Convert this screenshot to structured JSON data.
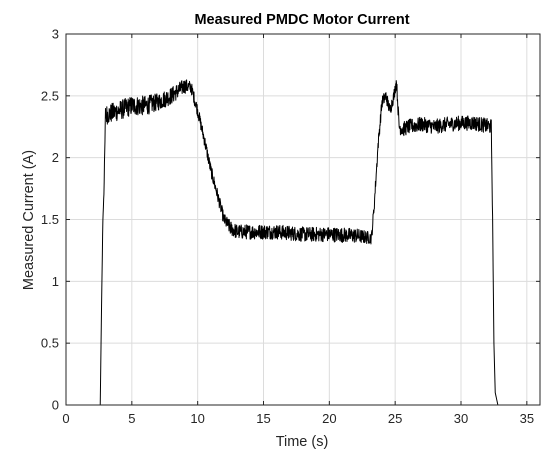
{
  "chart_data": {
    "type": "line",
    "title": "Measured PMDC Motor Current",
    "xlabel": "Time (s)",
    "ylabel": "Measured Current (A)",
    "xlim": [
      0,
      36
    ],
    "ylim": [
      0,
      3
    ],
    "xticks": [
      0,
      5,
      10,
      15,
      20,
      25,
      30,
      35
    ],
    "yticks": [
      0,
      0.5,
      1,
      1.5,
      2,
      2.5,
      3
    ],
    "xtick_labels": [
      "0",
      "5",
      "10",
      "15",
      "20",
      "25",
      "30",
      "35"
    ],
    "ytick_labels": [
      "0",
      "0.5",
      "1",
      "1.5",
      "2",
      "2.5",
      "3"
    ],
    "grid": true,
    "line_color": "#000000",
    "series": [
      {
        "x": [
          0,
          2.6,
          2.7,
          2.8,
          2.9,
          3.0,
          3.2,
          4.0,
          5.0,
          6.0,
          7.0,
          8.0,
          9.0,
          9.5,
          10.0,
          10.5,
          11.0,
          11.5,
          12.0,
          12.5,
          13.0,
          14.0,
          16.0,
          18.0,
          20.0,
          22.0,
          23.2,
          23.4,
          23.7,
          24.0,
          24.3,
          24.6,
          24.9,
          25.1,
          25.3,
          25.6,
          26.0,
          27.0,
          28.0,
          29.0,
          30.0,
          31.0,
          32.3,
          32.4,
          32.5,
          32.6,
          32.8,
          36.0
        ],
        "y": [
          0,
          0,
          0.8,
          1.5,
          1.8,
          2.35,
          2.35,
          2.38,
          2.42,
          2.42,
          2.45,
          2.5,
          2.58,
          2.57,
          2.38,
          2.15,
          1.9,
          1.7,
          1.5,
          1.43,
          1.4,
          1.4,
          1.4,
          1.38,
          1.38,
          1.37,
          1.35,
          1.6,
          2.1,
          2.45,
          2.5,
          2.38,
          2.5,
          2.62,
          2.25,
          2.23,
          2.25,
          2.27,
          2.25,
          2.27,
          2.28,
          2.28,
          2.25,
          1.5,
          0.5,
          0.1,
          0,
          0
        ],
        "noise": [
          0,
          0,
          0,
          0.04,
          0.05,
          0.08,
          0.08,
          0.08,
          0.08,
          0.08,
          0.07,
          0.07,
          0.06,
          0.05,
          0.05,
          0.05,
          0.05,
          0.05,
          0.05,
          0.06,
          0.06,
          0.06,
          0.06,
          0.06,
          0.06,
          0.06,
          0.05,
          0.05,
          0.05,
          0.05,
          0.05,
          0.05,
          0.05,
          0.05,
          0.06,
          0.06,
          0.06,
          0.06,
          0.06,
          0.06,
          0.06,
          0.06,
          0.06,
          0.03,
          0,
          0,
          0,
          0
        ]
      }
    ]
  }
}
